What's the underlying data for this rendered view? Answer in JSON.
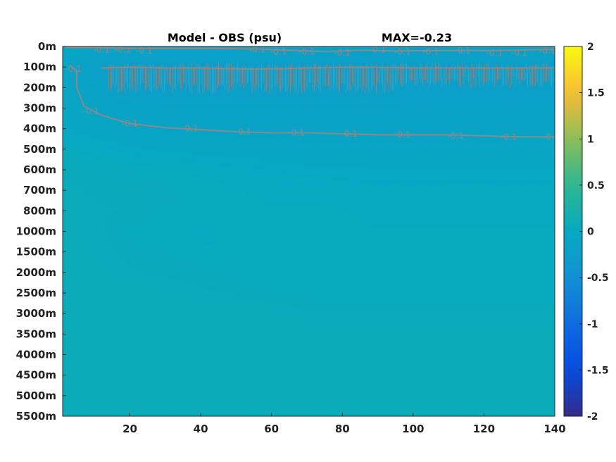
{
  "chart_data": {
    "type": "heatmap",
    "title_left": "Model - OBS (psu)",
    "title_right": "MAX=-0.23",
    "y_tick_labels": [
      "0m",
      "100m",
      "200m",
      "300m",
      "400m",
      "500m",
      "600m",
      "700m",
      "800m",
      "1000m",
      "1500m",
      "2000m",
      "2500m",
      "3000m",
      "3500m",
      "4000m",
      "4500m",
      "5000m",
      "5500m"
    ],
    "x_range": [
      1,
      140
    ],
    "x_ticks": [
      20,
      40,
      60,
      80,
      100,
      120,
      140
    ],
    "colorbar": {
      "colormap": "parula",
      "range": [
        -2,
        2
      ],
      "ticks": [
        -2,
        -1.5,
        -1,
        -0.5,
        0,
        0.5,
        1,
        1.5,
        2
      ],
      "tick_labels": [
        "-2",
        "-1.5",
        "-1",
        "-0.5",
        "0",
        "0.5",
        "1",
        "1.5",
        "2"
      ]
    },
    "field": {
      "x_nodes": [
        1,
        10,
        20,
        30,
        40,
        50,
        60,
        70,
        80,
        90,
        100,
        110,
        120,
        130,
        140
      ],
      "depth_levels": [
        "0m",
        "100m",
        "200m",
        "300m",
        "400m",
        "500m",
        "600m",
        "700m",
        "800m",
        "1000m",
        "1500m",
        "2000m",
        "2500m",
        "3000m",
        "3500m",
        "4000m",
        "4500m",
        "5000m",
        "5500m"
      ],
      "values": [
        [
          -0.05,
          -0.12,
          -0.14,
          -0.14,
          -0.14,
          -0.15,
          -0.15,
          -0.15,
          -0.15,
          -0.15,
          -0.15,
          -0.15,
          -0.15,
          -0.15,
          -0.15
        ],
        [
          -0.08,
          -0.2,
          -0.22,
          -0.23,
          -0.23,
          -0.23,
          -0.23,
          -0.23,
          -0.23,
          -0.23,
          -0.23,
          -0.23,
          -0.23,
          -0.22,
          -0.22
        ],
        [
          -0.07,
          -0.16,
          -0.21,
          -0.22,
          -0.22,
          -0.21,
          -0.21,
          -0.21,
          -0.21,
          -0.21,
          -0.2,
          -0.2,
          -0.2,
          -0.2,
          -0.2
        ],
        [
          -0.05,
          -0.12,
          -0.15,
          -0.16,
          -0.16,
          -0.16,
          -0.16,
          -0.16,
          -0.16,
          -0.16,
          -0.16,
          -0.16,
          -0.16,
          -0.16,
          -0.16
        ],
        [
          -0.03,
          -0.06,
          -0.09,
          -0.1,
          -0.11,
          -0.12,
          -0.12,
          -0.13,
          -0.13,
          -0.13,
          -0.13,
          -0.13,
          -0.13,
          -0.13,
          -0.13
        ],
        [
          0.02,
          0.0,
          -0.02,
          -0.04,
          -0.05,
          -0.06,
          -0.07,
          -0.07,
          -0.08,
          -0.08,
          -0.08,
          -0.08,
          -0.08,
          -0.08,
          -0.08
        ],
        [
          0.05,
          0.04,
          0.03,
          0.02,
          0.01,
          0.0,
          -0.01,
          -0.02,
          -0.02,
          -0.03,
          -0.03,
          -0.03,
          -0.03,
          -0.03,
          -0.03
        ],
        [
          0.06,
          0.05,
          0.05,
          0.04,
          0.03,
          0.02,
          0.01,
          0.01,
          0.0,
          0.0,
          0.0,
          0.0,
          0.0,
          0.0,
          0.0
        ],
        [
          0.07,
          0.06,
          0.05,
          0.03,
          0.02,
          0.02,
          0.02,
          0.02,
          0.02,
          0.01,
          0.01,
          0.01,
          0.01,
          0.01,
          0.01
        ],
        [
          0.07,
          0.06,
          0.03,
          0.02,
          0.01,
          0.02,
          0.02,
          0.02,
          0.02,
          0.02,
          0.02,
          0.02,
          0.02,
          0.02,
          0.02
        ],
        [
          0.08,
          0.07,
          0.04,
          0.03,
          0.02,
          0.02,
          0.02,
          0.02,
          0.02,
          0.02,
          0.02,
          0.02,
          0.02,
          0.02,
          0.02
        ],
        [
          0.08,
          0.08,
          0.06,
          0.05,
          0.04,
          0.03,
          0.02,
          0.02,
          0.02,
          0.02,
          0.02,
          0.02,
          0.02,
          0.02,
          0.02
        ],
        [
          0.08,
          0.08,
          0.08,
          0.07,
          0.06,
          0.05,
          0.04,
          0.03,
          0.02,
          0.02,
          0.02,
          0.02,
          0.02,
          0.02,
          0.02
        ],
        [
          0.08,
          0.08,
          0.08,
          0.08,
          0.08,
          0.08,
          0.07,
          0.06,
          0.06,
          0.06,
          0.06,
          0.06,
          0.06,
          0.06,
          0.06
        ],
        [
          0.08,
          0.08,
          0.08,
          0.08,
          0.08,
          0.08,
          0.08,
          0.08,
          0.08,
          0.08,
          0.08,
          0.08,
          0.08,
          0.08,
          0.08
        ],
        [
          0.08,
          0.08,
          0.08,
          0.08,
          0.08,
          0.08,
          0.08,
          0.08,
          0.08,
          0.08,
          0.08,
          0.08,
          0.08,
          0.08,
          0.08
        ],
        [
          0.08,
          0.08,
          0.08,
          0.08,
          0.08,
          0.08,
          0.08,
          0.08,
          0.08,
          0.08,
          0.08,
          0.08,
          0.08,
          0.08,
          0.08
        ],
        [
          0.08,
          0.08,
          0.08,
          0.08,
          0.08,
          0.08,
          0.08,
          0.08,
          0.08,
          0.08,
          0.08,
          0.08,
          0.08,
          0.08,
          0.08
        ],
        [
          0.08,
          0.08,
          0.08,
          0.08,
          0.08,
          0.08,
          0.08,
          0.08,
          0.08,
          0.08,
          0.08,
          0.08,
          0.08,
          0.08,
          0.08
        ]
      ]
    },
    "contours": [
      {
        "level": -0.1,
        "points": [
          [
            2,
            0.05
          ],
          [
            5,
            0.05
          ],
          [
            10,
            0.05
          ],
          [
            20,
            0.1
          ],
          [
            30,
            0.1
          ],
          [
            45,
            0.1
          ],
          [
            55,
            0.12
          ],
          [
            65,
            0.18
          ],
          [
            75,
            0.25
          ],
          [
            85,
            0.18
          ],
          [
            95,
            0.22
          ],
          [
            105,
            0.2
          ],
          [
            115,
            0.2
          ],
          [
            125,
            0.2
          ],
          [
            135,
            0.15
          ],
          [
            140,
            0.15
          ]
        ],
        "labels": [
          {
            "text": "-0.1",
            "x": 12,
            "y": 0.15
          },
          {
            "text": "-0.1",
            "x": 18,
            "y": 0.15
          },
          {
            "text": "-0.1",
            "x": 24,
            "y": 0.2
          },
          {
            "text": "-0.1",
            "x": 56,
            "y": 0.15
          },
          {
            "text": "-0.1",
            "x": 62,
            "y": 0.25
          },
          {
            "text": "-0.1",
            "x": 70,
            "y": 0.25
          },
          {
            "text": "-0.1",
            "x": 80,
            "y": 0.3
          },
          {
            "text": "-0.1",
            "x": 90,
            "y": 0.15
          },
          {
            "text": "-0.1",
            "x": 97,
            "y": 0.25
          },
          {
            "text": "-0.1",
            "x": 105,
            "y": 0.25
          },
          {
            "text": "-0.1",
            "x": 114,
            "y": 0.2
          },
          {
            "text": "-0.1",
            "x": 123,
            "y": 0.3
          },
          {
            "text": "-0.1",
            "x": 130,
            "y": 0.3
          },
          {
            "text": "-0.1",
            "x": 138,
            "y": 0.2
          }
        ]
      },
      {
        "level": -0.2,
        "points": [
          [
            12,
            1.05
          ],
          [
            20,
            1.0
          ],
          [
            30,
            1.05
          ],
          [
            40,
            1.05
          ],
          [
            55,
            1.1
          ],
          [
            70,
            1.05
          ],
          [
            85,
            1.0
          ],
          [
            100,
            1.05
          ],
          [
            115,
            1.05
          ],
          [
            130,
            1.05
          ],
          [
            140,
            1.05
          ]
        ],
        "labels": []
      },
      {
        "level": -0.1,
        "points": [
          [
            3,
            0.9
          ],
          [
            5,
            1.2
          ],
          [
            5,
            2.0
          ],
          [
            7,
            2.9
          ],
          [
            12,
            3.35
          ],
          [
            20,
            3.75
          ],
          [
            30,
            3.95
          ],
          [
            40,
            4.05
          ],
          [
            50,
            4.15
          ],
          [
            60,
            4.2
          ],
          [
            70,
            4.2
          ],
          [
            80,
            4.25
          ],
          [
            90,
            4.3
          ],
          [
            100,
            4.3
          ],
          [
            110,
            4.3
          ],
          [
            120,
            4.35
          ],
          [
            130,
            4.4
          ],
          [
            140,
            4.4
          ]
        ],
        "labels": [
          {
            "text": "-0.1",
            "x": 4,
            "y": 1.1
          },
          {
            "text": "-0.1",
            "x": 9,
            "y": 3.15
          },
          {
            "text": "-0.1",
            "x": 20,
            "y": 3.75
          },
          {
            "text": "-0.1",
            "x": 37,
            "y": 4.0
          },
          {
            "text": "-0.1",
            "x": 52,
            "y": 4.15
          },
          {
            "text": "-0.1",
            "x": 67,
            "y": 4.2
          },
          {
            "text": "-0.1",
            "x": 82,
            "y": 4.25
          },
          {
            "text": "-0.1",
            "x": 97,
            "y": 4.3
          },
          {
            "text": "-0.1",
            "x": 112,
            "y": 4.35
          },
          {
            "text": "-0.1",
            "x": 127,
            "y": 4.4
          },
          {
            "text": "-0.1",
            "x": 139,
            "y": 4.4
          }
        ]
      }
    ],
    "hatch_band": {
      "x_range": [
        14,
        140
      ],
      "y_range": [
        0.8,
        2.3
      ],
      "color": "#8a8a8a"
    }
  }
}
